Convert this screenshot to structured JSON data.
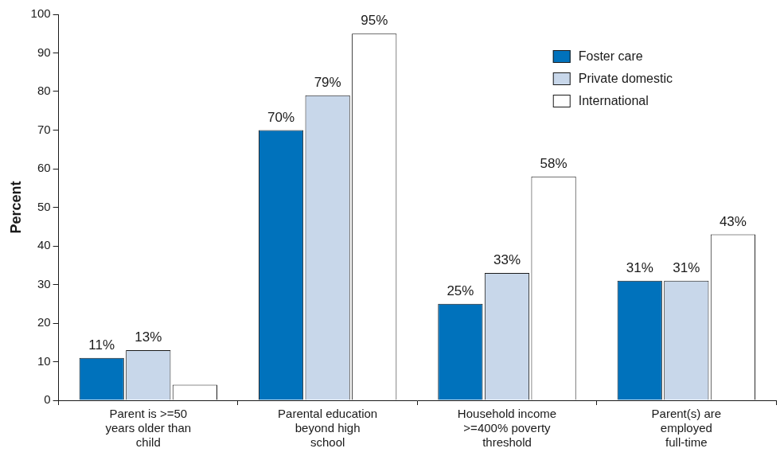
{
  "chart_data": {
    "type": "bar",
    "y_label": "Percent",
    "categories": [
      [
        "Parent is >=50",
        "years older than",
        "child"
      ],
      [
        "Parental education",
        "beyond high",
        "school"
      ],
      [
        "Household income",
        ">=400% poverty",
        "threshold"
      ],
      [
        "Parent(s) are",
        "employed",
        "full-time"
      ]
    ],
    "series": [
      {
        "name": "Foster care",
        "color": "#0072bc",
        "values": [
          11,
          70,
          25,
          31
        ],
        "value_labels": [
          "11%",
          "70%",
          "25%",
          "31%"
        ]
      },
      {
        "name": "Private domestic",
        "color": "#c8d7ea",
        "values": [
          13,
          79,
          33,
          31
        ],
        "value_labels": [
          "13%",
          "79%",
          "33%",
          "31%"
        ]
      },
      {
        "name": "International",
        "color": "#ffffff",
        "values": [
          4,
          95,
          58,
          43
        ],
        "value_labels": [
          null,
          "95%",
          "58%",
          "43%"
        ]
      }
    ],
    "ylim": [
      0,
      100
    ],
    "yticks": [
      0,
      10,
      20,
      30,
      40,
      50,
      60,
      70,
      80,
      90,
      100
    ],
    "grid": false,
    "legend": "upper right",
    "data_labels": true
  }
}
